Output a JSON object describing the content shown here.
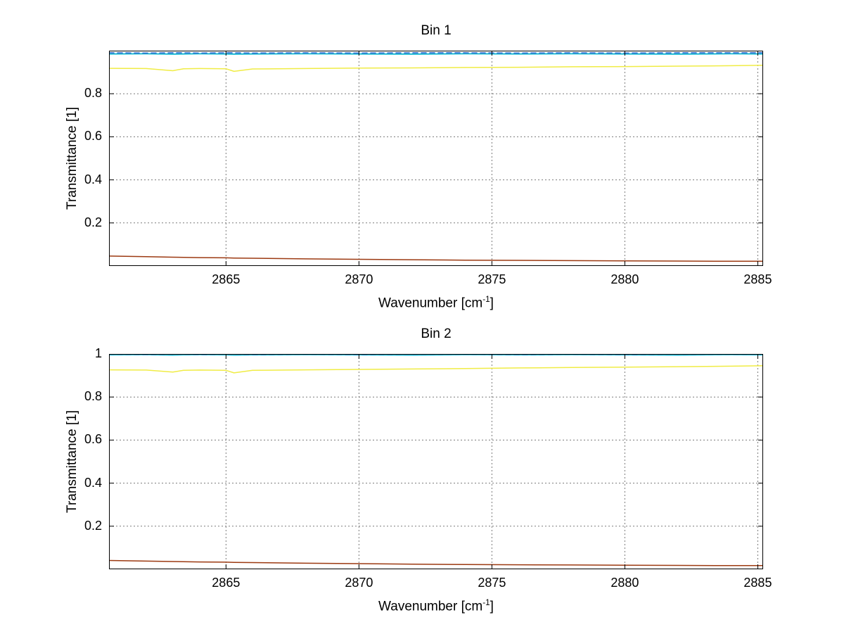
{
  "figure": {
    "background": "#ffffff",
    "text_color": "#000000",
    "grid_color": "#7a7a7a",
    "axis_color": "#000000"
  },
  "chart_data": [
    {
      "type": "line",
      "title": "Bin 1",
      "xlabel": "Wavenumber [cm⁻¹]",
      "xlabel_parts": {
        "prefix": "Wavenumber [cm",
        "sup": "-1",
        "suffix": "]"
      },
      "ylabel": "Transmittance [1]",
      "xlim": [
        2860.6,
        2885.2
      ],
      "ylim": [
        0,
        1
      ],
      "xticks": [
        2865,
        2870,
        2875,
        2880,
        2885
      ],
      "yticks": [
        0.2,
        0.4,
        0.6,
        0.8
      ],
      "grid": "dotted",
      "legend": "none",
      "x": [
        2860.6,
        2862,
        2863,
        2863.4,
        2864,
        2865,
        2865.3,
        2866,
        2868,
        2870,
        2872,
        2874,
        2876,
        2878,
        2880,
        2882,
        2884,
        2885.2
      ],
      "series": [
        {
          "name": "trace-cyan",
          "color": "#2FC0D8",
          "width": 2.2,
          "values": [
            0.985,
            0.986,
            0.984,
            0.985,
            0.986,
            0.985,
            0.984,
            0.985,
            0.986,
            0.985,
            0.984,
            0.986,
            0.985,
            0.986,
            0.985,
            0.984,
            0.986,
            0.985
          ]
        },
        {
          "name": "trace-blue-dashed",
          "color": "#2063C6",
          "width": 1.6,
          "dash": "7 5",
          "values": [
            0.99,
            0.989,
            0.99,
            0.99,
            0.989,
            0.99,
            0.99,
            0.989,
            0.99,
            0.989,
            0.99,
            0.99,
            0.989,
            0.99,
            0.989,
            0.99,
            0.99,
            0.99
          ]
        },
        {
          "name": "trace-yellow",
          "color": "#F0EC45",
          "width": 1.5,
          "values": [
            0.918,
            0.917,
            0.907,
            0.916,
            0.917,
            0.916,
            0.904,
            0.915,
            0.917,
            0.919,
            0.92,
            0.922,
            0.923,
            0.925,
            0.926,
            0.928,
            0.93,
            0.932
          ]
        },
        {
          "name": "trace-darkred",
          "color": "#9C3A12",
          "width": 1.5,
          "values": [
            0.046,
            0.043,
            0.041,
            0.04,
            0.039,
            0.038,
            0.037,
            0.036,
            0.033,
            0.031,
            0.029,
            0.027,
            0.026,
            0.025,
            0.024,
            0.023,
            0.022,
            0.022
          ]
        }
      ]
    },
    {
      "type": "line",
      "title": "Bin 2",
      "xlabel": "Wavenumber [cm⁻¹]",
      "xlabel_parts": {
        "prefix": "Wavenumber [cm",
        "sup": "-1",
        "suffix": "]"
      },
      "ylabel": "Transmittance [1]",
      "xlim": [
        2860.6,
        2885.2
      ],
      "ylim": [
        0,
        1
      ],
      "xticks": [
        2865,
        2870,
        2875,
        2880,
        2885
      ],
      "yticks": [
        0.2,
        0.4,
        0.6,
        0.8,
        1
      ],
      "grid": "dotted",
      "legend": "none",
      "x": [
        2860.6,
        2862,
        2863,
        2863.4,
        2864,
        2865,
        2865.3,
        2866,
        2868,
        2870,
        2872,
        2874,
        2876,
        2878,
        2880,
        2882,
        2884,
        2885.2
      ],
      "series": [
        {
          "name": "trace-cyan",
          "color": "#2FC0D8",
          "width": 2.2,
          "values": [
            0.996,
            0.997,
            0.995,
            0.996,
            0.997,
            0.996,
            0.995,
            0.996,
            0.997,
            0.996,
            0.995,
            0.997,
            0.996,
            0.997,
            0.996,
            0.995,
            0.997,
            0.996
          ]
        },
        {
          "name": "trace-blue-dashed",
          "color": "#2063C6",
          "width": 1.6,
          "dash": "7 5",
          "values": [
            0.999,
            0.998,
            0.999,
            0.999,
            0.998,
            0.999,
            0.999,
            0.998,
            0.999,
            0.998,
            0.999,
            0.999,
            0.998,
            0.999,
            0.998,
            0.999,
            0.999,
            0.999
          ]
        },
        {
          "name": "trace-yellow",
          "color": "#F0EC45",
          "width": 1.5,
          "values": [
            0.926,
            0.925,
            0.916,
            0.924,
            0.925,
            0.924,
            0.912,
            0.924,
            0.926,
            0.928,
            0.93,
            0.932,
            0.935,
            0.937,
            0.939,
            0.941,
            0.943,
            0.945
          ]
        },
        {
          "name": "trace-darkred",
          "color": "#9C3A12",
          "width": 1.5,
          "values": [
            0.041,
            0.038,
            0.036,
            0.035,
            0.034,
            0.033,
            0.032,
            0.031,
            0.028,
            0.026,
            0.024,
            0.022,
            0.021,
            0.02,
            0.019,
            0.018,
            0.017,
            0.017
          ]
        }
      ]
    }
  ]
}
